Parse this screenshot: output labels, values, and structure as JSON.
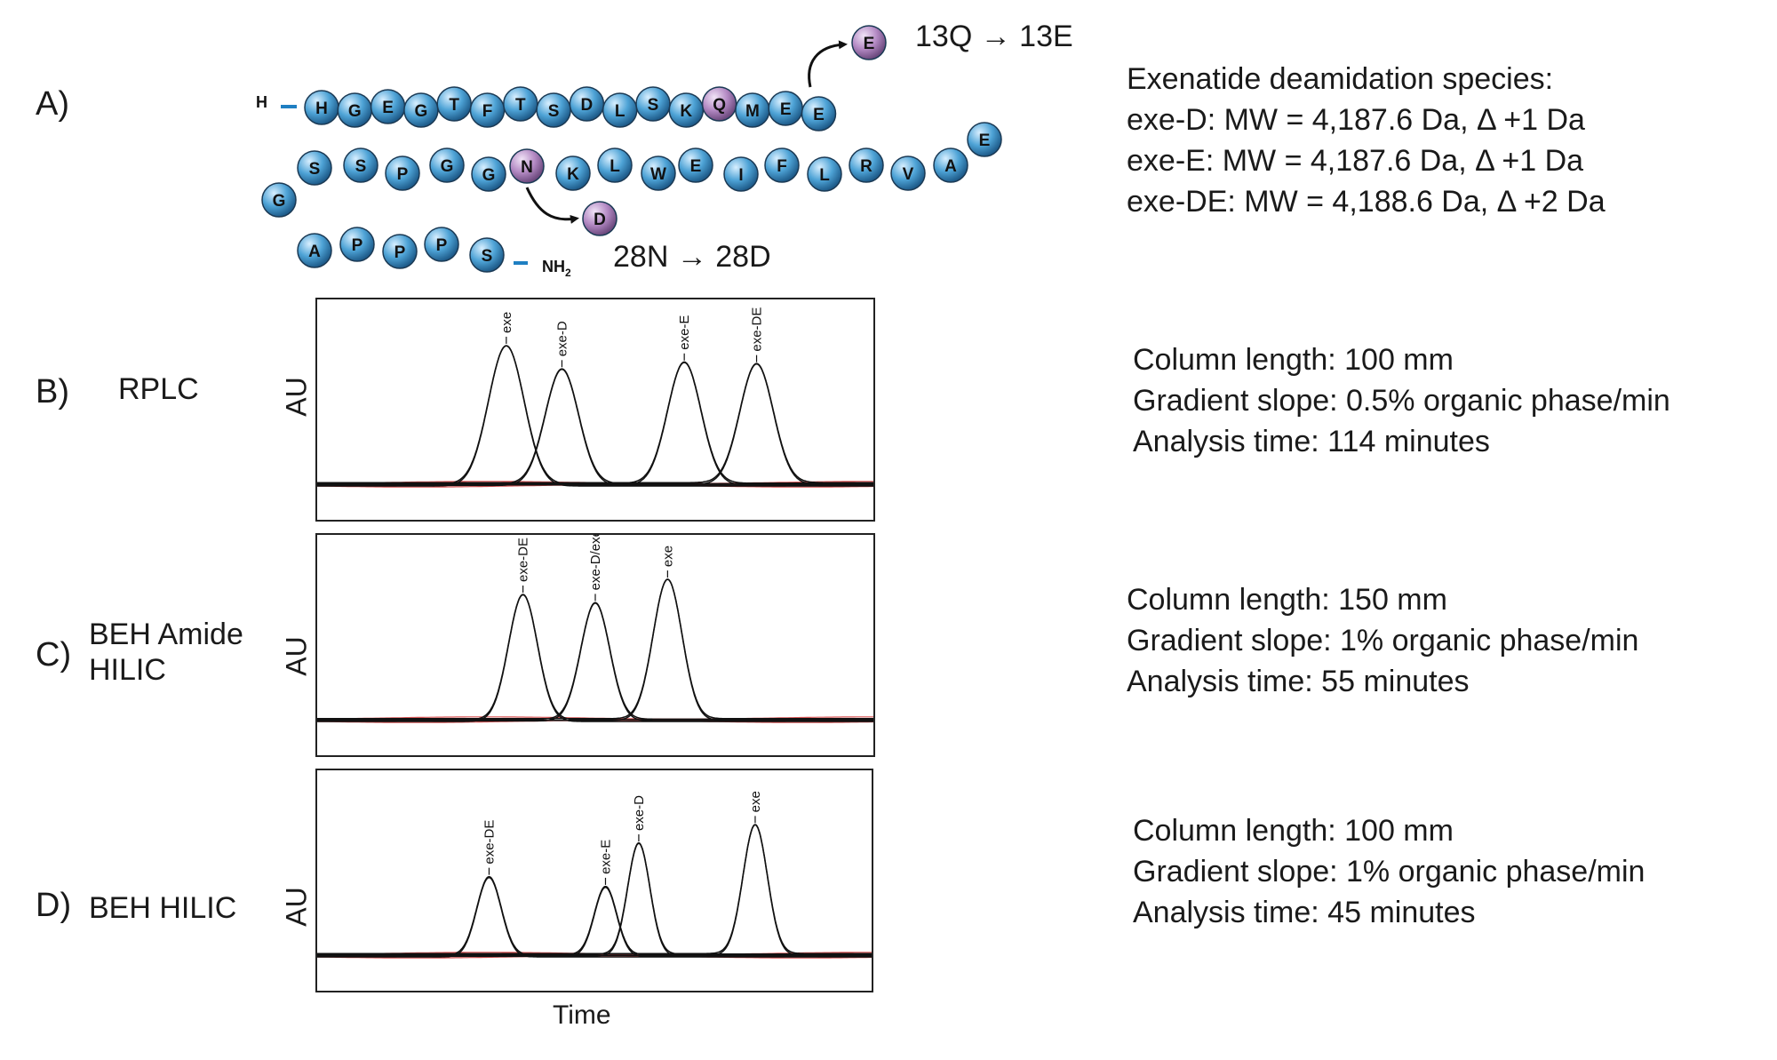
{
  "panelA": {
    "letter": "A)",
    "n_term": "H",
    "c_term_main": "NH",
    "c_term_sub": "2",
    "row1": [
      "H",
      "G",
      "E",
      "G",
      "T",
      "F",
      "T",
      "S",
      "D",
      "L",
      "S",
      "K",
      "Q",
      "M",
      "E",
      "E"
    ],
    "row1_tail": [
      "E"
    ],
    "row2": [
      "G",
      "S",
      "S",
      "P",
      "G",
      "G",
      "N",
      "K",
      "L",
      "W",
      "E",
      "I",
      "F",
      "L",
      "R",
      "V",
      "A"
    ],
    "row3": [
      "A",
      "P",
      "P",
      "P",
      "S"
    ],
    "mod1_product": "E",
    "mod1_label": "13Q → 13E",
    "mod2_product": "D",
    "mod2_label": "28N → 28D",
    "colors": {
      "residue": "#4ea3d6",
      "modified": "#b48ac4",
      "linker": "#1f7fc2"
    },
    "species_title": "Exenatide deamidation species:",
    "species": [
      "exe-D: MW = 4,187.6 Da, Δ +1 Da",
      "exe-E: MW = 4,187.6 Da, Δ +1 Da",
      "exe-DE: MW = 4,188.6 Da, Δ +2 Da"
    ]
  },
  "panels": [
    {
      "letter": "B)",
      "method_lines": [
        "RPLC"
      ],
      "ylabel": "AU",
      "info": [
        "Column length: 100 mm",
        "Gradient slope: 0.5% organic phase/min",
        "Analysis time: 114 minutes"
      ]
    },
    {
      "letter": "C)",
      "method_lines": [
        "BEH Amide",
        "HILIC"
      ],
      "ylabel": "AU",
      "info": [
        "Column length: 150 mm",
        "Gradient slope: 1% organic phase/min",
        "Analysis time: 55 minutes"
      ]
    },
    {
      "letter": "D)",
      "method_lines": [
        "BEH  HILIC"
      ],
      "ylabel": "AU",
      "info": [
        "Column length: 100 mm",
        "Gradient slope: 1% organic phase/min",
        "Analysis time: 45 minutes"
      ]
    }
  ],
  "xlabel": "Time",
  "chart_data": [
    {
      "type": "line",
      "xlabel": "Time",
      "ylabel": "AU",
      "x_range": [
        0,
        1
      ],
      "y_range": [
        0,
        1
      ],
      "peaks": [
        {
          "label": "exe",
          "x": 0.34,
          "height": 0.83,
          "width": 0.032
        },
        {
          "label": "exe-D",
          "x": 0.44,
          "height": 0.69,
          "width": 0.03
        },
        {
          "label": "exe-E",
          "x": 0.66,
          "height": 0.73,
          "width": 0.03
        },
        {
          "label": "exe-DE",
          "x": 0.79,
          "height": 0.72,
          "width": 0.03
        }
      ],
      "colors": {
        "trace": "#111111",
        "baseline": "#d43a3a"
      }
    },
    {
      "type": "line",
      "xlabel": "Time",
      "ylabel": "AU",
      "x_range": [
        0,
        1
      ],
      "y_range": [
        0,
        1
      ],
      "peaks": [
        {
          "label": "exe-DE",
          "x": 0.37,
          "height": 0.75,
          "width": 0.026
        },
        {
          "label": "exe-D/exe-E",
          "x": 0.5,
          "height": 0.7,
          "width": 0.026
        },
        {
          "label": "exe",
          "x": 0.63,
          "height": 0.84,
          "width": 0.026
        }
      ],
      "colors": {
        "trace": "#111111",
        "baseline": "#d43a3a"
      }
    },
    {
      "type": "line",
      "xlabel": "Time",
      "ylabel": "AU",
      "x_range": [
        0,
        1
      ],
      "y_range": [
        0,
        1
      ],
      "peaks": [
        {
          "label": "exe-DE",
          "x": 0.31,
          "height": 0.47,
          "width": 0.022
        },
        {
          "label": "exe-E",
          "x": 0.52,
          "height": 0.41,
          "width": 0.02
        },
        {
          "label": "exe-D",
          "x": 0.58,
          "height": 0.67,
          "width": 0.02
        },
        {
          "label": "exe",
          "x": 0.79,
          "height": 0.78,
          "width": 0.022
        }
      ],
      "colors": {
        "trace": "#111111",
        "baseline": "#d43a3a"
      }
    }
  ]
}
